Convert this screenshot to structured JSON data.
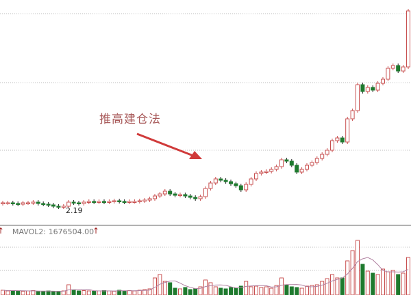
{
  "annotation": "推高建仓法",
  "low_label": "2.19",
  "volume_indicator": {
    "label": "MAVOL2: 1676504.00",
    "arrow": "↑"
  },
  "colors": {
    "up": "#c85050",
    "down": "#1e7a2e",
    "annotation": "#a85a5a",
    "arrow": "#d03a3a",
    "grid": "#bbbbbb"
  },
  "chart_data": {
    "type": "candlestick",
    "grid": true,
    "annotations": [
      {
        "text": "推高建仓法"
      },
      {
        "text": "2.19",
        "type": "low-marker"
      }
    ],
    "close": [
      2.27,
      2.27,
      2.26,
      2.25,
      2.27,
      2.27,
      2.28,
      2.26,
      2.25,
      2.24,
      2.22,
      2.21,
      2.22,
      2.28,
      2.27,
      2.26,
      2.28,
      2.29,
      2.28,
      2.29,
      2.28,
      2.29,
      2.3,
      2.29,
      2.28,
      2.29,
      2.29,
      2.3,
      2.31,
      2.33,
      2.37,
      2.4,
      2.44,
      2.4,
      2.38,
      2.39,
      2.37,
      2.35,
      2.33,
      2.36,
      2.48,
      2.56,
      2.62,
      2.6,
      2.58,
      2.55,
      2.52,
      2.46,
      2.54,
      2.62,
      2.7,
      2.72,
      2.73,
      2.76,
      2.8,
      2.9,
      2.88,
      2.82,
      2.72,
      2.76,
      2.82,
      2.86,
      2.92,
      2.98,
      3.04,
      3.18,
      3.22,
      3.16,
      3.5,
      3.62,
      4.0,
      3.9,
      3.96,
      3.92,
      4.02,
      4.08,
      4.24,
      4.28,
      4.2,
      4.26,
      5.08
    ],
    "first_open": 2.26,
    "volume": [
      700000,
      600000,
      650000,
      600000,
      550000,
      600000,
      650000,
      500000,
      550000,
      600000,
      500000,
      550000,
      600000,
      1500000,
      700000,
      600000,
      650000,
      600000,
      550000,
      600000,
      650000,
      600000,
      550000,
      700000,
      600000,
      650000,
      600000,
      700000,
      800000,
      900000,
      2500000,
      3000000,
      2000000,
      1800000,
      1000000,
      900000,
      1100000,
      800000,
      900000,
      1200000,
      2200000,
      1800000,
      1200000,
      1000000,
      900000,
      1100000,
      1000000,
      1300000,
      2000000,
      1200000,
      1300000,
      1100000,
      1200000,
      1000000,
      1400000,
      2500000,
      1500000,
      1200000,
      1100000,
      1000000,
      1300000,
      1400000,
      1500000,
      2000000,
      2400000,
      3000000,
      2500000,
      2500000,
      5000000,
      6500000,
      8000000,
      4500000,
      3500000,
      3200000,
      3000000,
      3800000,
      3400000,
      3600000,
      3000000,
      3200000,
      5500000
    ]
  }
}
